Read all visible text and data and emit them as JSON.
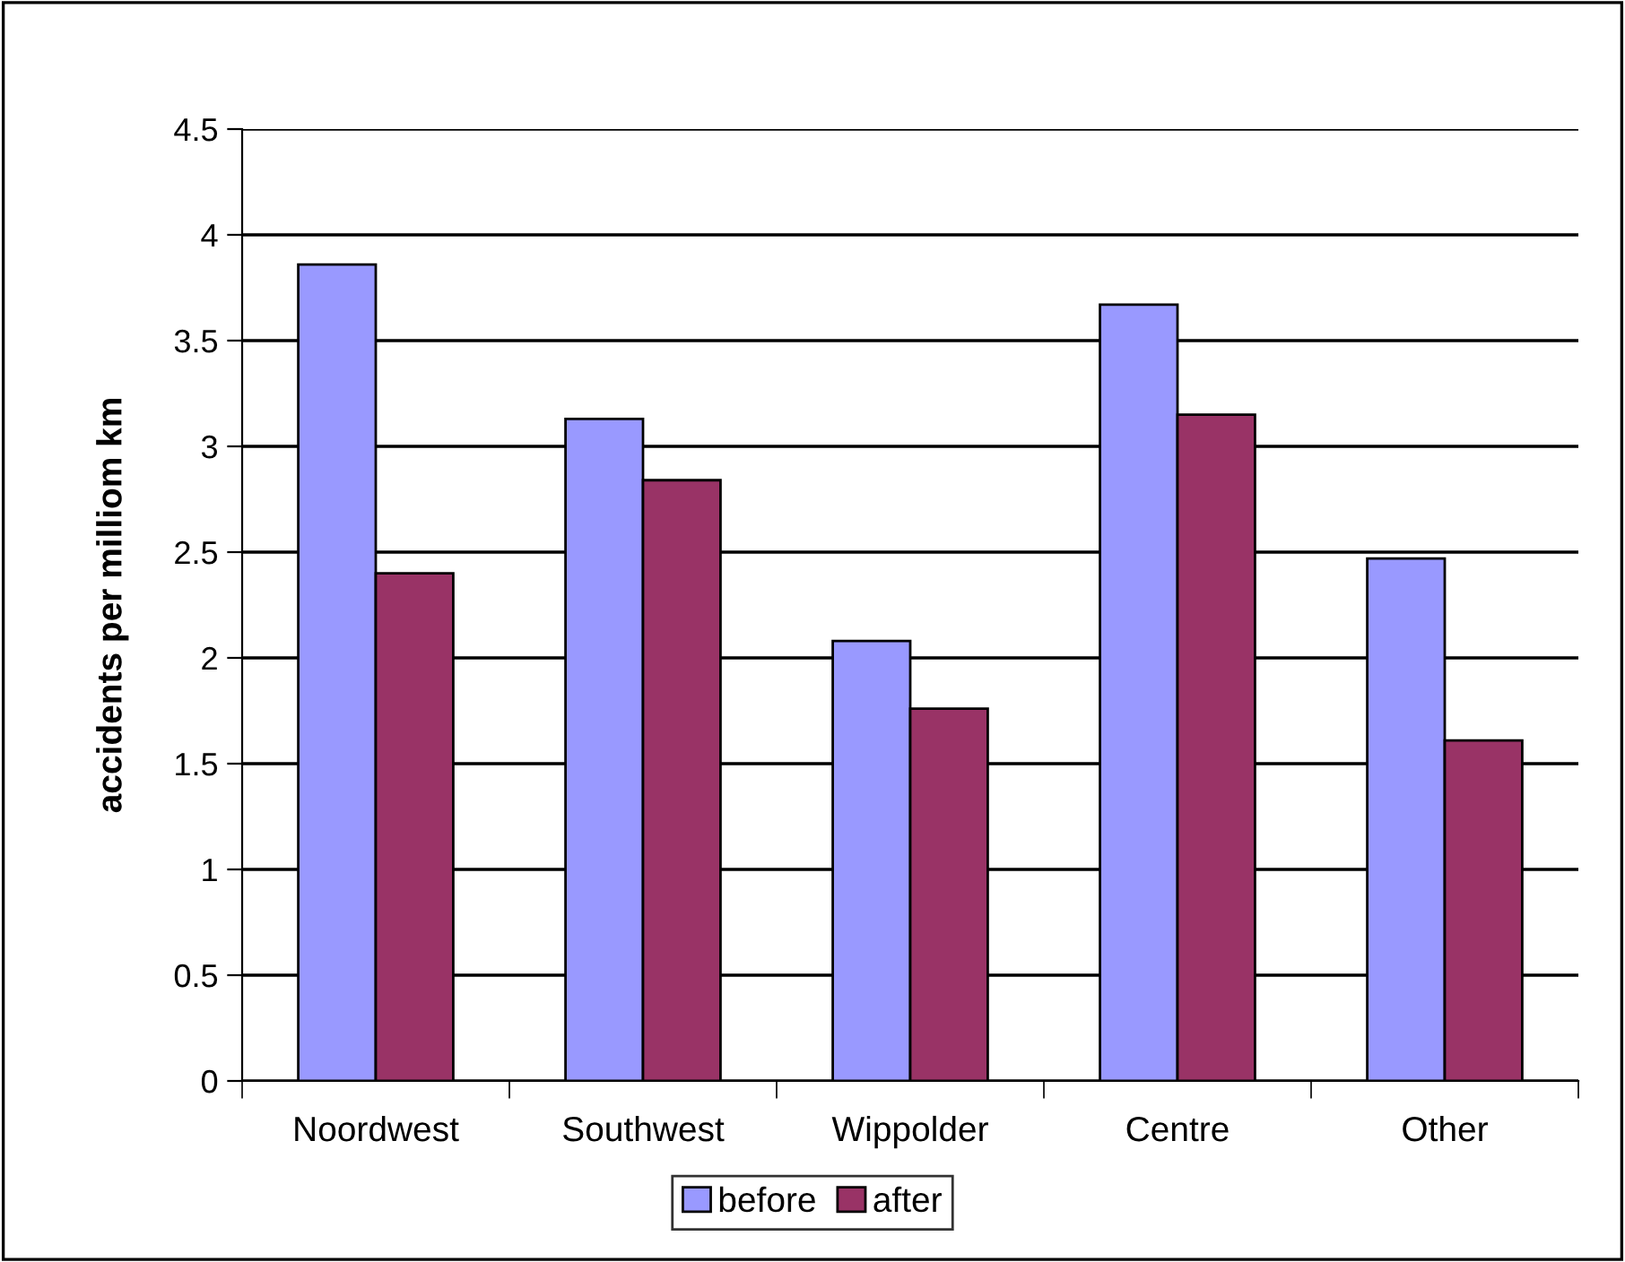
{
  "chart_data": {
    "type": "bar",
    "ylabel": "accidents per milliom km",
    "categories": [
      "Noordwest",
      "Southwest",
      "Wippolder",
      "Centre",
      "Other"
    ],
    "series": [
      {
        "name": "before",
        "color": "#9999ff",
        "values": [
          3.86,
          3.13,
          2.08,
          3.67,
          2.47
        ]
      },
      {
        "name": "after",
        "color": "#993366",
        "values": [
          2.4,
          2.84,
          1.76,
          3.15,
          1.61
        ]
      }
    ],
    "ylim": [
      0,
      4.5
    ],
    "yticks": [
      0,
      0.5,
      1,
      1.5,
      2,
      2.5,
      3,
      3.5,
      4,
      4.5
    ],
    "grid": "y",
    "legend": "bottom"
  }
}
